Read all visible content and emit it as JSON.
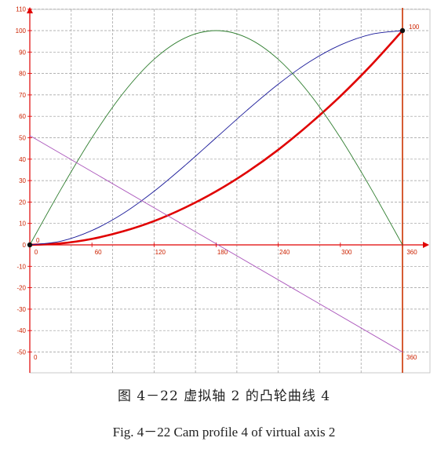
{
  "chart_data": {
    "type": "line",
    "xlim": [
      0,
      360
    ],
    "ylim": [
      -55,
      110
    ],
    "grid": true,
    "x_ticks": [
      0,
      60,
      120,
      180,
      240,
      300,
      360
    ],
    "x_tick_labels": [
      "0",
      "60",
      "120",
      "180",
      "240",
      "300",
      "360"
    ],
    "y_ticks": [
      110,
      100,
      90,
      80,
      70,
      60,
      50,
      40,
      30,
      20,
      10,
      0,
      -10,
      -20,
      -30,
      -40,
      -50
    ],
    "y_tick_labels": [
      "110",
      "100",
      "90",
      "80",
      "70",
      "60",
      "50",
      "40",
      "30",
      "20",
      "10",
      "0",
      "-10",
      "-20",
      "-30",
      "-40",
      "-50"
    ],
    "annotations": [
      {
        "text": "0",
        "x": 0,
        "y": 0
      },
      {
        "text": "100",
        "x": 360,
        "y": 100
      },
      {
        "text": "0",
        "x": 0,
        "y": -55
      },
      {
        "text": "360",
        "x": 360,
        "y": -55
      }
    ],
    "series": [
      {
        "color": "#e00000",
        "width": 2.6,
        "points": [
          [
            0,
            0
          ],
          [
            30,
            0.7
          ],
          [
            60,
            2.8
          ],
          [
            90,
            6.3
          ],
          [
            120,
            11.1
          ],
          [
            150,
            17.4
          ],
          [
            180,
            25.0
          ],
          [
            210,
            34.0
          ],
          [
            240,
            44.4
          ],
          [
            270,
            56.3
          ],
          [
            300,
            69.4
          ],
          [
            330,
            84.0
          ],
          [
            360,
            100
          ]
        ]
      },
      {
        "color": "#1a1a99",
        "width": 0.9,
        "points": [
          [
            0,
            0
          ],
          [
            30,
            1.7
          ],
          [
            60,
            6.7
          ],
          [
            90,
            14.6
          ],
          [
            120,
            25.0
          ],
          [
            150,
            37.1
          ],
          [
            180,
            50.0
          ],
          [
            210,
            62.9
          ],
          [
            240,
            75.0
          ],
          [
            270,
            85.4
          ],
          [
            300,
            93.3
          ],
          [
            330,
            98.3
          ],
          [
            360,
            100
          ]
        ]
      },
      {
        "color": "#2e7d2e",
        "width": 0.9,
        "points": [
          [
            0,
            0
          ],
          [
            30,
            25.9
          ],
          [
            60,
            50.0
          ],
          [
            90,
            70.7
          ],
          [
            120,
            86.6
          ],
          [
            150,
            96.6
          ],
          [
            180,
            100
          ],
          [
            210,
            96.6
          ],
          [
            240,
            86.6
          ],
          [
            270,
            70.7
          ],
          [
            300,
            50.0
          ],
          [
            330,
            25.9
          ],
          [
            360,
            0
          ]
        ]
      },
      {
        "color": "#aa55bb",
        "width": 0.9,
        "points": [
          [
            0,
            51
          ],
          [
            360,
            -50
          ]
        ]
      }
    ],
    "markers": [
      [
        0,
        0
      ],
      [
        360,
        100
      ]
    ]
  },
  "caption_cn": "图 4－22  虚拟轴 2 的凸轮曲线 4",
  "caption_en": "Fig. 4－22 Cam profile 4 of virtual axis 2"
}
